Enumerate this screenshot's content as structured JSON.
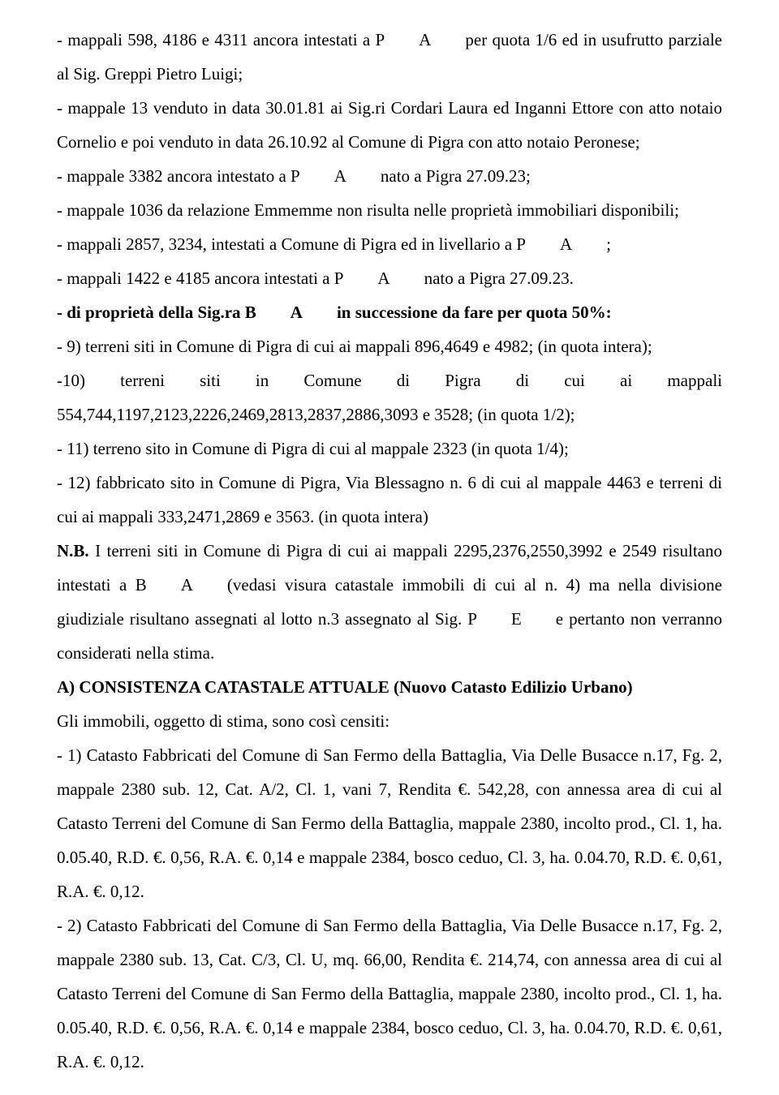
{
  "p1": "- mappali 598, 4186 e 4311 ancora intestati a P  A  per quota 1/6 ed in usufrutto parziale al Sig. Greppi Pietro Luigi;",
  "p2": "- mappale 13 venduto in data 30.01.81 ai Sig.ri Cordari Laura ed Inganni Ettore con atto notaio Cornelio e poi venduto in data 26.10.92 al Comune di Pigra con atto notaio Peronese;",
  "p3": "- mappale 3382 ancora intestato a P  A  nato a Pigra 27.09.23;",
  "p4": "- mappale 1036 da relazione Emmemme non risulta nelle proprietà immobiliari disponibili;",
  "p5": "- mappali 2857, 3234, intestati a Comune di Pigra ed in livellario a P  A  ;",
  "p6": "- mappali 1422 e 4185 ancora intestati a P  A  nato a Pigra 27.09.23.",
  "p7": "- di proprietà della Sig.ra B  A  in successione da fare per quota 50%:",
  "p8": "- 9) terreni siti in Comune di Pigra di cui ai mappali 896,4649 e 4982; (in quota intera);",
  "p9": "-10) terreni siti in Comune di Pigra di cui ai mappali 554,744,1197,2123,2226,2469,2813,2837,2886,3093 e 3528; (in quota 1/2);",
  "p10": "- 11) terreno sito in Comune di Pigra di cui al mappale 2323 (in quota 1/4);",
  "p11": "- 12) fabbricato sito in Comune di Pigra, Via Blessagno n. 6 di cui al mappale 4463 e terreni di cui ai mappali 333,2471,2869 e 3563. (in quota intera)",
  "nb_label": "N.B.",
  "nb_rest": " I terreni siti in Comune di Pigra di cui ai mappali 2295,2376,2550,3992 e 2549 risultano intestati a B  A  (vedasi visura catastale immobili di cui al n. 4) ma nella divisione giudiziale risultano assegnati al lotto n.3 assegnato al Sig. P  E  e pertanto non verranno considerati nella stima.",
  "p13": "A) CONSISTENZA CATASTALE ATTUALE (Nuovo Catasto Edilizio Urbano)",
  "p14": "Gli immobili, oggetto di stima, sono così censiti:",
  "p15": "- 1) Catasto Fabbricati del Comune di San Fermo della Battaglia, Via Delle Busacce n.17, Fg. 2, mappale 2380 sub. 12, Cat. A/2, Cl. 1, vani 7, Rendita €. 542,28, con annessa area di cui al Catasto Terreni del Comune di San Fermo della Battaglia, mappale 2380, incolto prod., Cl. 1, ha. 0.05.40, R.D. €. 0,56, R.A. €. 0,14 e mappale 2384, bosco ceduo, Cl. 3, ha. 0.04.70, R.D. €. 0,61, R.A. €. 0,12.",
  "p16": "- 2) Catasto Fabbricati del Comune di San Fermo della Battaglia, Via Delle Busacce n.17, Fg. 2, mappale 2380 sub. 13, Cat. C/3, Cl. U, mq. 66,00, Rendita €. 214,74, con annessa area di cui al Catasto Terreni del Comune di San Fermo della Battaglia, mappale 2380, incolto prod., Cl. 1, ha. 0.05.40, R.D. €. 0,56, R.A. €. 0,14 e mappale 2384, bosco ceduo, Cl. 3, ha. 0.04.70, R.D. €. 0,61, R.A. €. 0,12."
}
